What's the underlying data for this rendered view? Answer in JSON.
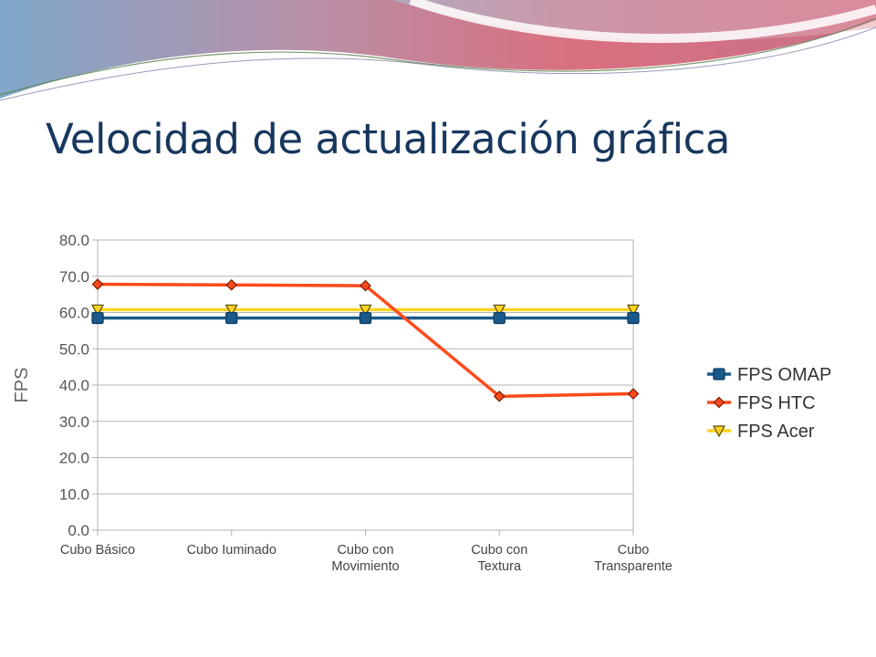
{
  "slide": {
    "title": "Velocidad de actualización gráfica"
  },
  "colors": {
    "title": "#17375e",
    "omap": "#1a5a8a",
    "htc": "#ff4a1a",
    "acer": "#ffd320"
  },
  "chart_data": {
    "type": "line",
    "categories": [
      [
        "Cubo Básico"
      ],
      [
        "Cubo Iuminado"
      ],
      [
        "Cubo con",
        "Movimiento"
      ],
      [
        "Cubo con",
        "Textura"
      ],
      [
        "Cubo",
        "Transparente"
      ]
    ],
    "series": [
      {
        "name": "FPS OMAP",
        "values": [
          58.5,
          58.5,
          58.5,
          58.5,
          58.5
        ],
        "color": "#1a5a8a",
        "marker": "square"
      },
      {
        "name": "FPS HTC",
        "values": [
          67.8,
          67.6,
          67.4,
          36.9,
          37.6
        ],
        "color": "#ff4a1a",
        "marker": "diamond"
      },
      {
        "name": "FPS Acer",
        "values": [
          60.8,
          60.8,
          60.8,
          60.8,
          60.8
        ],
        "color": "#ffd320",
        "marker": "triangle-down"
      }
    ],
    "ylabel": "FPS",
    "xlabel": "",
    "ylim": [
      0,
      80
    ],
    "yticks": [
      "0.0",
      "10.0",
      "20.0",
      "30.0",
      "40.0",
      "50.0",
      "60.0",
      "70.0",
      "80.0"
    ],
    "grid": true,
    "legend_position": "right"
  }
}
